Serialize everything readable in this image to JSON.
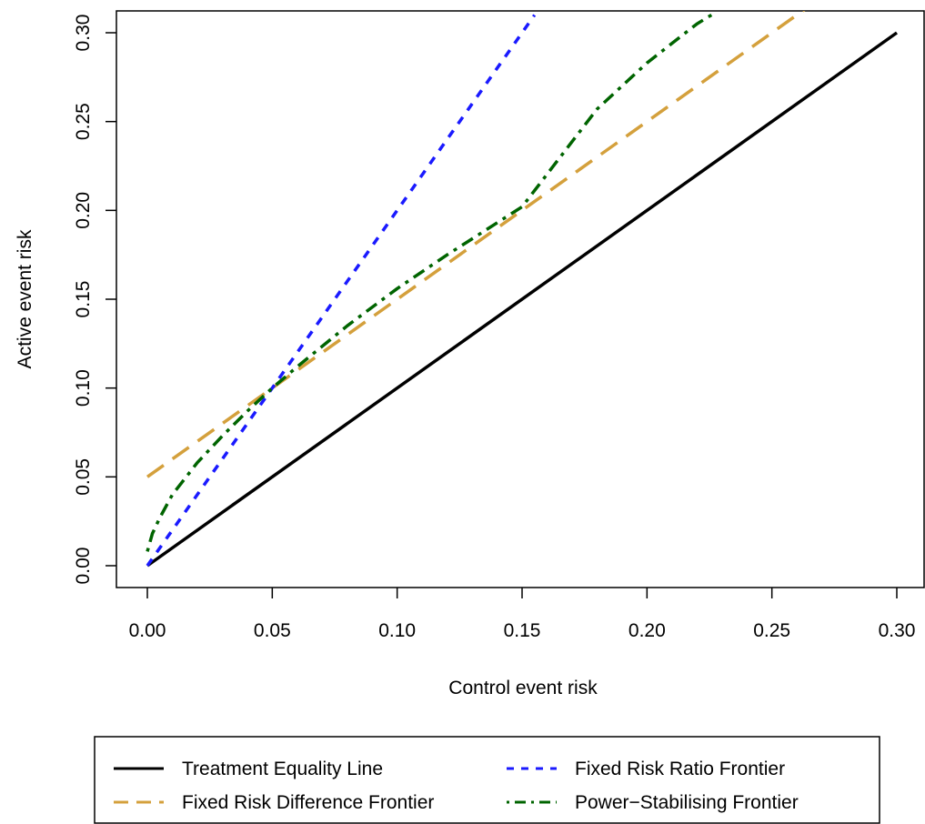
{
  "chart_data": {
    "type": "line",
    "xlabel": "Control event risk",
    "ylabel": "Active event risk",
    "xlim": [
      0,
      0.3
    ],
    "ylim": [
      0,
      0.3
    ],
    "x_ticks": [
      "0.00",
      "0.05",
      "0.10",
      "0.15",
      "0.20",
      "0.25",
      "0.30"
    ],
    "y_ticks": [
      "0.00",
      "0.05",
      "0.10",
      "0.15",
      "0.20",
      "0.25",
      "0.30"
    ],
    "grid": false,
    "legend_position": "bottom",
    "series": [
      {
        "name": "Treatment Equality Line",
        "color": "#000000",
        "style": "solid",
        "x": [
          0,
          0.3
        ],
        "y": [
          0,
          0.3
        ]
      },
      {
        "name": "Fixed Risk Difference Frontier",
        "color": "#d4a03c",
        "style": "dashed",
        "x": [
          0,
          0.05,
          0.1,
          0.15,
          0.2,
          0.25,
          0.265
        ],
        "y": [
          0.05,
          0.1,
          0.15,
          0.2,
          0.25,
          0.3,
          0.315
        ]
      },
      {
        "name": "Fixed Risk Ratio Frontier",
        "color": "#1a1aff",
        "style": "dotted",
        "x": [
          0,
          0.05,
          0.1,
          0.155
        ],
        "y": [
          0,
          0.1,
          0.2,
          0.31
        ]
      },
      {
        "name": "Power−Stabilising Frontier",
        "color": "#006400",
        "style": "dotdash",
        "x": [
          0,
          0.002,
          0.005,
          0.01,
          0.02,
          0.03,
          0.04,
          0.05,
          0.06,
          0.08,
          0.1,
          0.12,
          0.15,
          0.18,
          0.2,
          0.22,
          0.227
        ],
        "y": [
          0.008,
          0.018,
          0.027,
          0.04,
          0.058,
          0.073,
          0.087,
          0.1,
          0.112,
          0.135,
          0.156,
          0.175,
          0.202,
          0.257,
          0.283,
          0.305,
          0.311
        ]
      }
    ]
  }
}
